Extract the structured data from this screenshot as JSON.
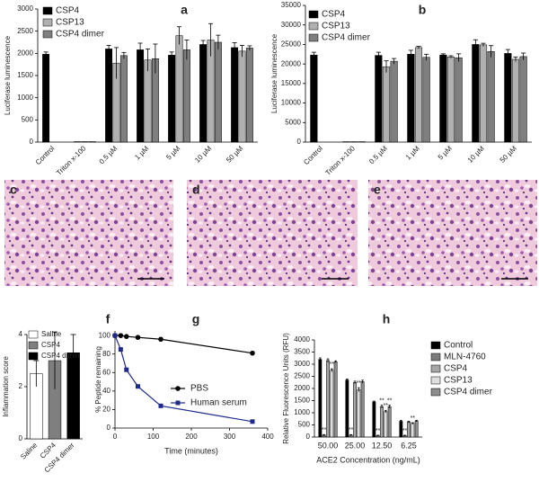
{
  "chart_data": [
    {
      "type": "bar",
      "panel": "a",
      "ylabel": "Luciferase luminescence",
      "categories": [
        "Control",
        "Triton x-100",
        "0.5 µM",
        "1 µM",
        "5 µM",
        "10 µM",
        "50 µM"
      ],
      "ylim": [
        0,
        3000
      ],
      "yticks": [
        0,
        500,
        1000,
        1500,
        2000,
        2500,
        3000
      ],
      "series": [
        {
          "name": "CSP4",
          "color": "#000000",
          "values": [
            1980,
            10,
            2100,
            2080,
            1960,
            2200,
            2130
          ],
          "errors": [
            50,
            0,
            80,
            150,
            70,
            90,
            110
          ]
        },
        {
          "name": "CSP13",
          "color": "#b0b0b0",
          "values": [
            null,
            10,
            1780,
            1850,
            2400,
            2300,
            2050
          ],
          "errors": [
            null,
            0,
            350,
            250,
            200,
            370,
            130
          ]
        },
        {
          "name": "CSP4 dimer",
          "color": "#7f7f7f",
          "values": [
            null,
            10,
            1950,
            1880,
            2080,
            2250,
            2120
          ],
          "errors": [
            null,
            0,
            70,
            330,
            220,
            160,
            50
          ]
        }
      ]
    },
    {
      "type": "bar",
      "panel": "b",
      "ylabel": "Luciferase luminescence",
      "categories": [
        "Control",
        "Triton x-100",
        "0.5 µM",
        "1 µM",
        "5 µM",
        "10 µM",
        "50 µM"
      ],
      "ylim": [
        0,
        35000
      ],
      "yticks": [
        0,
        5000,
        10000,
        15000,
        20000,
        25000,
        30000,
        35000
      ],
      "series": [
        {
          "name": "CSP4",
          "color": "#000000",
          "values": [
            22300,
            100,
            22200,
            22500,
            22300,
            25000,
            22700
          ],
          "errors": [
            700,
            0,
            800,
            1000,
            300,
            1200,
            1000
          ]
        },
        {
          "name": "CSP13",
          "color": "#b0b0b0",
          "values": [
            null,
            100,
            19300,
            24200,
            21800,
            24900,
            21200
          ],
          "errors": [
            null,
            0,
            1500,
            300,
            300,
            400,
            600
          ]
        },
        {
          "name": "CSP4 dimer",
          "color": "#7f7f7f",
          "values": [
            null,
            100,
            20700,
            21700,
            21600,
            23200,
            21900
          ],
          "errors": [
            null,
            0,
            700,
            800,
            1000,
            1500,
            900
          ]
        }
      ]
    },
    {
      "type": "bar",
      "panel": "f",
      "ylabel": "Inflammation score",
      "categories": [
        "Saline",
        "CSP4",
        "CSP4 dimer"
      ],
      "values": [
        2.5,
        3.0,
        3.3
      ],
      "errors": [
        0.5,
        1.1,
        0.7
      ],
      "colors": [
        "#ffffff",
        "#7f7f7f",
        "#000000"
      ],
      "ylim": [
        0,
        4
      ],
      "yticks": [
        0,
        2,
        4
      ]
    },
    {
      "type": "line",
      "panel": "g",
      "xlabel": "Time (minutes)",
      "ylabel": "% Peptide remaining",
      "x": [
        0,
        15,
        30,
        60,
        120,
        360
      ],
      "xlim": [
        0,
        400
      ],
      "xticks": [
        0,
        100,
        200,
        300,
        400
      ],
      "ylim": [
        0,
        105
      ],
      "yticks": [
        0,
        20,
        40,
        60,
        80,
        100
      ],
      "series": [
        {
          "name": "PBS",
          "color": "#000000",
          "marker": "circle",
          "values": [
            100,
            100,
            99,
            98,
            96,
            81
          ]
        },
        {
          "name": "Human serum",
          "color": "#1f2a8c",
          "marker": "square",
          "values": [
            100,
            85,
            63,
            45,
            24,
            7
          ]
        }
      ]
    },
    {
      "type": "bar",
      "panel": "h",
      "xlabel": "ACE2 Concentration (ng/mL)",
      "ylabel": "Relative Fluorescence Units (RFU)",
      "categories": [
        "50.00",
        "25.00",
        "12.50",
        "6.25"
      ],
      "ylim": [
        0,
        4000
      ],
      "yticks": [
        0,
        500,
        1000,
        1500,
        2000,
        2500,
        3000,
        3500,
        4000
      ],
      "series": [
        {
          "name": "Control",
          "color": "#000000",
          "values": [
            3200,
            2350,
            1450,
            650
          ],
          "errors": [
            60,
            40,
            30,
            40
          ],
          "significance": [
            null,
            null,
            null,
            null
          ]
        },
        {
          "name": "MLN-4760",
          "color": "#7a7a7a",
          "values": [
            80,
            80,
            60,
            60
          ],
          "errors": [
            20,
            20,
            15,
            15
          ],
          "significance": [
            "**",
            "**",
            "**",
            "**"
          ]
        },
        {
          "name": "CSP4",
          "color": "#a6a6a6",
          "values": [
            3150,
            2250,
            1250,
            620
          ],
          "errors": [
            70,
            50,
            60,
            30
          ],
          "significance": [
            null,
            null,
            "**",
            null
          ]
        },
        {
          "name": "CSP13",
          "color": "#dedede",
          "values": [
            2750,
            1950,
            1050,
            560
          ],
          "errors": [
            60,
            80,
            50,
            30
          ],
          "significance": [
            "**",
            "**",
            "**",
            "**"
          ]
        },
        {
          "name": "CSP4 dimer",
          "color": "#8c8c8c",
          "values": [
            3100,
            2280,
            1250,
            660
          ],
          "errors": [
            40,
            60,
            60,
            30
          ],
          "significance": [
            null,
            null,
            "**",
            null
          ]
        }
      ]
    }
  ],
  "images": [
    {
      "label": "c"
    },
    {
      "label": "d"
    },
    {
      "label": "e"
    }
  ]
}
